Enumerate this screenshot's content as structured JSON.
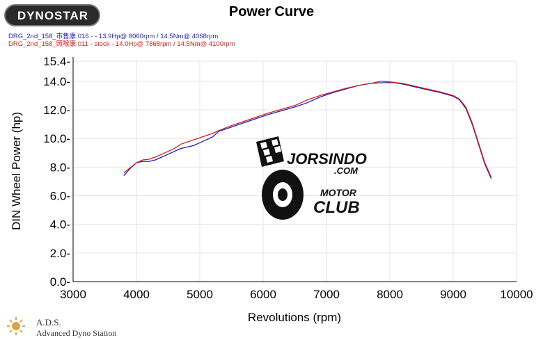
{
  "header": {
    "brand": "DYNOSTAR",
    "title": "Power Curve"
  },
  "legend": [
    {
      "text": "DRG_2nd_158_市售康.016 - - 13.9Hp@ 8060rpm / 14.5Nm@ 4068rpm",
      "color": "#1f1fb4"
    },
    {
      "text": "DRG_2nd_158_照喉康.011 - stock - 14.0Hp@ 7868rpm / 14.5Nm@ 4100rpm",
      "color": "#d21e1e"
    }
  ],
  "watermark": {
    "text_main": "JORSINDO",
    "text_com": ".COM",
    "text_motor": "MOTOR",
    "text_club": "CLUB"
  },
  "footer": {
    "name": "A.D.S.",
    "subtitle": "Advanced Dyno Station"
  },
  "chart_data": {
    "type": "line",
    "title": "Power Curve",
    "xlabel": "Revolutions (rpm)",
    "ylabel": "DIN Wheel Power (hp)",
    "xlim": [
      3000,
      10000
    ],
    "ylim": [
      0,
      15.4
    ],
    "xticks": [
      "3000",
      "4000",
      "5000",
      "6000",
      "7000",
      "8000",
      "9000",
      "10000"
    ],
    "yticks": [
      "0.0-",
      "2.0-",
      "4.0-",
      "6.0-",
      "8.0-",
      "10.0-",
      "12.0-",
      "14.0-",
      "15.4-"
    ],
    "ytick_values": [
      0,
      2,
      4,
      6,
      8,
      10,
      12,
      14,
      15.4
    ],
    "grid": true,
    "series": [
      {
        "name": "DRG_2nd_158_市售康.016",
        "color": "#1f1fb4",
        "x": [
          3800,
          3900,
          4000,
          4100,
          4200,
          4300,
          4400,
          4500,
          4600,
          4700,
          4800,
          4900,
          5000,
          5100,
          5200,
          5300,
          5500,
          5700,
          5900,
          6100,
          6300,
          6500,
          6700,
          6900,
          7100,
          7300,
          7500,
          7700,
          7900,
          8060,
          8200,
          8400,
          8600,
          8800,
          9000,
          9100,
          9200,
          9300,
          9400,
          9500,
          9600
        ],
        "y": [
          7.4,
          7.9,
          8.3,
          8.4,
          8.4,
          8.5,
          8.7,
          8.9,
          9.1,
          9.3,
          9.4,
          9.5,
          9.7,
          9.9,
          10.1,
          10.5,
          10.8,
          11.1,
          11.4,
          11.7,
          11.95,
          12.2,
          12.5,
          12.9,
          13.2,
          13.45,
          13.7,
          13.85,
          13.9,
          13.9,
          13.8,
          13.6,
          13.4,
          13.2,
          12.95,
          12.7,
          12.1,
          11.0,
          9.6,
          8.2,
          7.2
        ]
      },
      {
        "name": "DRG_2nd_158_照喉康.011 - stock",
        "color": "#d21e1e",
        "x": [
          3800,
          3900,
          4000,
          4100,
          4200,
          4300,
          4400,
          4500,
          4600,
          4700,
          4800,
          4900,
          5000,
          5100,
          5200,
          5300,
          5500,
          5700,
          5900,
          6100,
          6300,
          6500,
          6700,
          6900,
          7100,
          7300,
          7500,
          7700,
          7868,
          8000,
          8200,
          8400,
          8600,
          8800,
          9000,
          9100,
          9200,
          9300,
          9400,
          9500,
          9600
        ],
        "y": [
          7.6,
          7.95,
          8.3,
          8.5,
          8.55,
          8.7,
          8.9,
          9.1,
          9.3,
          9.6,
          9.75,
          9.9,
          10.05,
          10.2,
          10.35,
          10.55,
          10.9,
          11.2,
          11.5,
          11.8,
          12.05,
          12.3,
          12.7,
          13.0,
          13.25,
          13.5,
          13.7,
          13.85,
          14.0,
          13.95,
          13.85,
          13.65,
          13.45,
          13.25,
          13.0,
          12.75,
          12.2,
          11.1,
          9.7,
          8.3,
          7.3
        ]
      }
    ]
  }
}
